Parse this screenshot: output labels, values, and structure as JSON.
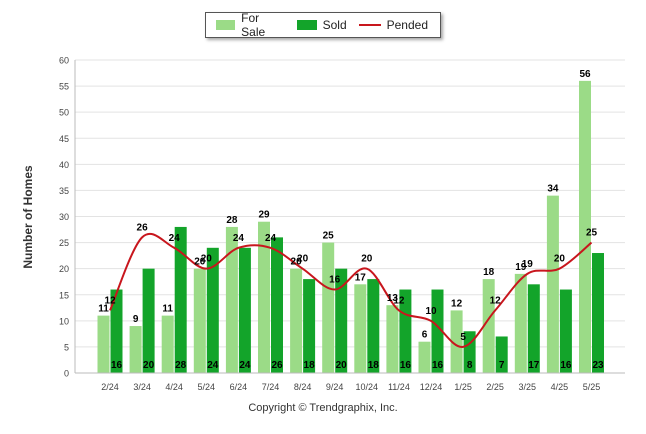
{
  "chart_data": {
    "type": "bar",
    "ylabel": "Number of Homes",
    "ylim": [
      0,
      60
    ],
    "yticks": [
      0,
      5,
      10,
      15,
      20,
      25,
      30,
      35,
      40,
      45,
      50,
      55,
      60
    ],
    "categories": [
      "2/24",
      "3/24",
      "4/24",
      "5/24",
      "6/24",
      "7/24",
      "8/24",
      "9/24",
      "10/24",
      "11/24",
      "12/24",
      "1/25",
      "2/25",
      "3/25",
      "4/25",
      "5/25"
    ],
    "series": [
      {
        "name": "For Sale",
        "type": "bar",
        "color": "#9bdb87",
        "values": [
          11,
          9,
          11,
          20,
          28,
          29,
          20,
          25,
          17,
          13,
          6,
          12,
          18,
          19,
          34,
          56
        ]
      },
      {
        "name": "Sold",
        "type": "bar",
        "color": "#13a42a",
        "values": [
          16,
          20,
          28,
          24,
          24,
          26,
          18,
          20,
          18,
          16,
          16,
          8,
          7,
          17,
          16,
          23
        ]
      },
      {
        "name": "Pended",
        "type": "line",
        "color": "#c8161d",
        "values": [
          12,
          26,
          24,
          20,
          24,
          24,
          20,
          16,
          20,
          12,
          10,
          5,
          12,
          19,
          20,
          25
        ]
      }
    ],
    "legend_position": "top-center",
    "grid": true
  },
  "footer": {
    "copyright": "Copyright © Trendgraphix, Inc."
  }
}
